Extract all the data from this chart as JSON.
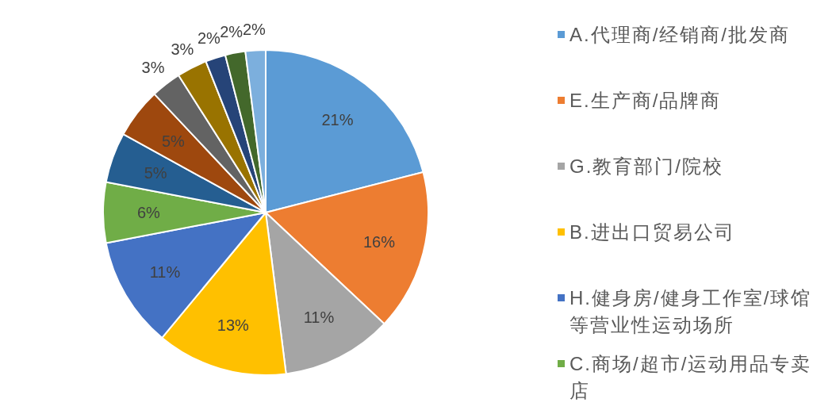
{
  "chart_data": {
    "type": "pie",
    "categories": [
      "A.代理商/经销商/批发商",
      "E.生产商/品牌商",
      "G.教育部门/院校",
      "B.进出口贸易公司",
      "H.健身房/健身工作室/球馆等营业性运动场所",
      "C.商场/超市/运动用品专卖店",
      null,
      null,
      null,
      null,
      null,
      null,
      null
    ],
    "values": [
      21,
      16,
      11,
      13,
      11,
      6,
      5,
      5,
      3,
      3,
      2,
      2,
      2
    ],
    "colors": [
      "#5b9bd5",
      "#ed7d31",
      "#a5a5a5",
      "#ffc000",
      "#4472c4",
      "#70ad47",
      "#255e91",
      "#9e480e",
      "#636363",
      "#997300",
      "#264478",
      "#43682b",
      "#7cafdd"
    ],
    "value_labels": [
      "21%",
      "16%",
      "11%",
      "13%",
      "11%",
      "6%",
      "5%",
      "5%",
      "3%",
      "3%",
      "2%",
      "2%",
      "2%"
    ],
    "legend": "right"
  }
}
